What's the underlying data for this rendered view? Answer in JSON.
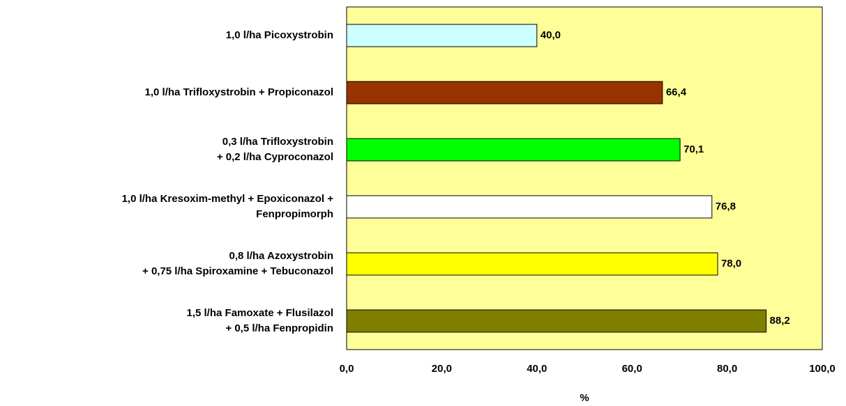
{
  "chart_data": {
    "type": "bar",
    "orientation": "horizontal",
    "categories": [
      [
        "1,0 l/ha Picoxystrobin"
      ],
      [
        "1,0 l/ha Trifloxystrobin + Propiconazol"
      ],
      [
        "0,3 l/ha Trifloxystrobin",
        "+ 0,2 l/ha Cyproconazol"
      ],
      [
        "1,0 l/ha Kresoxim-methyl + Epoxiconazol +",
        "Fenpropimorph"
      ],
      [
        "0,8 l/ha Azoxystrobin",
        "+ 0,75 l/ha Spiroxamine + Tebuconazol"
      ],
      [
        "1,5 l/ha Famoxate + Flusilazol",
        "+ 0,5 l/ha Fenpropidin"
      ]
    ],
    "values": [
      40.0,
      66.4,
      70.1,
      76.8,
      78.0,
      88.2
    ],
    "value_labels": [
      "40,0",
      "66,4",
      "70,1",
      "76,8",
      "78,0",
      "88,2"
    ],
    "colors": [
      "#ccffff",
      "#993300",
      "#00ff00",
      "#ffffff",
      "#ffff00",
      "#808000"
    ],
    "xlabel": "%",
    "xlim": [
      0,
      100
    ],
    "xticks": [
      {
        "value": 0,
        "label": "0,0"
      },
      {
        "value": 20,
        "label": "20,0"
      },
      {
        "value": 40,
        "label": "40,0"
      },
      {
        "value": 60,
        "label": "60,0"
      },
      {
        "value": 80,
        "label": "80,0"
      },
      {
        "value": 100,
        "label": "100,0"
      }
    ],
    "plot_background": "#ffff99",
    "grid": false
  }
}
